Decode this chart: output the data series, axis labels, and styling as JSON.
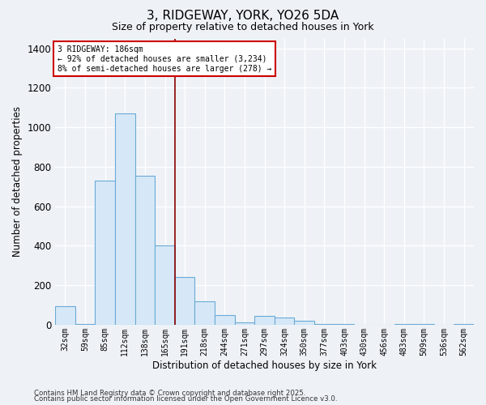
{
  "title": "3, RIDGEWAY, YORK, YO26 5DA",
  "subtitle": "Size of property relative to detached houses in York",
  "xlabel": "Distribution of detached houses by size in York",
  "ylabel": "Number of detached properties",
  "footnote1": "Contains HM Land Registry data © Crown copyright and database right 2025.",
  "footnote2": "Contains public sector information licensed under the Open Government Licence v3.0.",
  "annotation_line1": "3 RIDGEWAY: 186sqm",
  "annotation_line2": "← 92% of detached houses are smaller (3,234)",
  "annotation_line3": "8% of semi-detached houses are larger (278) →",
  "bar_color": "#d6e8f7",
  "bar_edge_color": "#6aaad4",
  "vline_color": "#8b0000",
  "annotation_box_color": "#ffffff",
  "annotation_box_edge": "#cc0000",
  "categories": [
    "32sqm",
    "59sqm",
    "85sqm",
    "112sqm",
    "138sqm",
    "165sqm",
    "191sqm",
    "218sqm",
    "244sqm",
    "271sqm",
    "297sqm",
    "324sqm",
    "350sqm",
    "377sqm",
    "403sqm",
    "430sqm",
    "456sqm",
    "483sqm",
    "509sqm",
    "536sqm",
    "562sqm"
  ],
  "values": [
    95,
    5,
    730,
    1070,
    755,
    400,
    240,
    120,
    50,
    10,
    45,
    35,
    20,
    2,
    5,
    0,
    0,
    2,
    5,
    0,
    2
  ],
  "vline_index": 6,
  "ylim": [
    0,
    1450
  ],
  "yticks": [
    0,
    200,
    400,
    600,
    800,
    1000,
    1200,
    1400
  ],
  "background_color": "#eef2f7",
  "grid_color": "#ffffff",
  "title_fontsize": 11,
  "subtitle_fontsize": 9
}
